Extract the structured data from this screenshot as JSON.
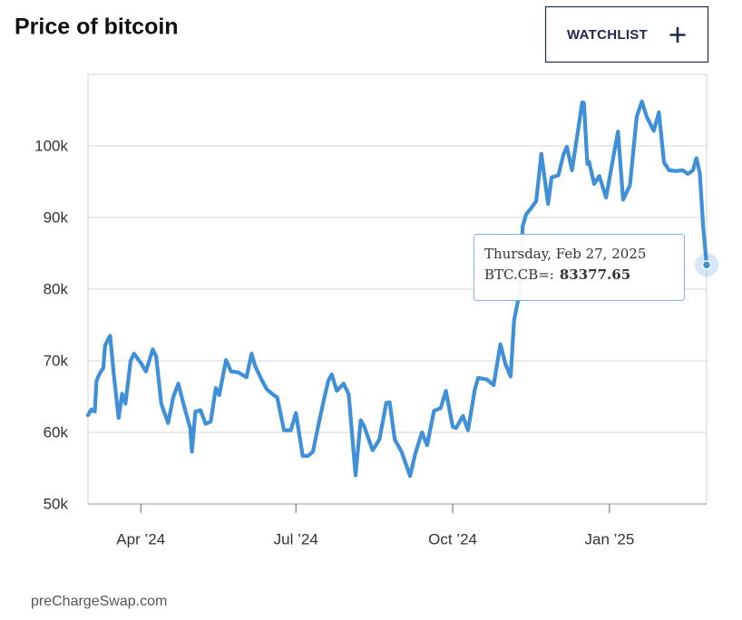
{
  "chart_data": {
    "type": "line",
    "title": "Price of bitcoin",
    "button": "WATCHLIST",
    "source": "preChargeSwap.com",
    "tooltip": {
      "date": "Thursday, Feb 27, 2025",
      "label": "BTC.CB=:"
    },
    "xlim": [
      "2024-03-01",
      "2025-02-27"
    ],
    "xticks": [
      {
        "value": "2024-04-01",
        "label": "Apr ’24"
      },
      {
        "value": "2024-07-01",
        "label": "Jul ’24"
      },
      {
        "value": "2024-10-01",
        "label": "Oct ’24"
      },
      {
        "value": "2025-01-01",
        "label": "Jan ’25"
      }
    ],
    "ylim": [
      50000,
      110000
    ],
    "yticks": [
      {
        "value": 50000,
        "label": "50k"
      },
      {
        "value": 60000,
        "label": "60k"
      },
      {
        "value": 70000,
        "label": "70k"
      },
      {
        "value": 80000,
        "label": "80k"
      },
      {
        "value": 90000,
        "label": "90k"
      },
      {
        "value": 100000,
        "label": "100k"
      }
    ],
    "grid": true,
    "x": [
      "2024-03-01",
      "2024-03-03",
      "2024-03-05",
      "2024-03-06",
      "2024-03-08",
      "2024-03-10",
      "2024-03-11",
      "2024-03-13",
      "2024-03-14",
      "2024-03-16",
      "2024-03-19",
      "2024-03-21",
      "2024-03-23",
      "2024-03-26",
      "2024-03-28",
      "2024-04-01",
      "2024-04-04",
      "2024-04-08",
      "2024-04-10",
      "2024-04-13",
      "2024-04-17",
      "2024-04-20",
      "2024-04-23",
      "2024-04-26",
      "2024-04-30",
      "2024-05-01",
      "2024-05-03",
      "2024-05-06",
      "2024-05-09",
      "2024-05-12",
      "2024-05-15",
      "2024-05-17",
      "2024-05-21",
      "2024-05-24",
      "2024-05-28",
      "2024-06-02",
      "2024-06-05",
      "2024-06-07",
      "2024-06-11",
      "2024-06-14",
      "2024-06-18",
      "2024-06-20",
      "2024-06-24",
      "2024-06-28",
      "2024-07-01",
      "2024-07-05",
      "2024-07-08",
      "2024-07-11",
      "2024-07-14",
      "2024-07-17",
      "2024-07-20",
      "2024-07-22",
      "2024-07-25",
      "2024-07-29",
      "2024-08-01",
      "2024-08-05",
      "2024-08-08",
      "2024-08-10",
      "2024-08-15",
      "2024-08-19",
      "2024-08-23",
      "2024-08-25",
      "2024-08-28",
      "2024-09-01",
      "2024-09-06",
      "2024-09-09",
      "2024-09-13",
      "2024-09-16",
      "2024-09-20",
      "2024-09-24",
      "2024-09-27",
      "2024-10-01",
      "2024-10-03",
      "2024-10-07",
      "2024-10-10",
      "2024-10-14",
      "2024-10-16",
      "2024-10-21",
      "2024-10-25",
      "2024-10-29",
      "2024-11-01",
      "2024-11-04",
      "2024-11-06",
      "2024-11-10",
      "2024-11-11",
      "2024-11-13",
      "2024-11-15",
      "2024-11-19",
      "2024-11-22",
      "2024-11-26",
      "2024-11-28",
      "2024-12-02",
      "2024-12-05",
      "2024-12-07",
      "2024-12-10",
      "2024-12-13",
      "2024-12-16",
      "2024-12-17",
      "2024-12-19",
      "2024-12-20",
      "2024-12-23",
      "2024-12-26",
      "2024-12-30",
      "2025-01-03",
      "2025-01-06",
      "2025-01-09",
      "2025-01-13",
      "2025-01-17",
      "2025-01-20",
      "2025-01-23",
      "2025-01-27",
      "2025-01-30",
      "2025-02-02",
      "2025-02-05",
      "2025-02-09",
      "2025-02-13",
      "2025-02-16",
      "2025-02-19",
      "2025-02-21",
      "2025-02-23",
      "2025-02-25",
      "2025-02-27"
    ],
    "series": [
      {
        "color": "#3f8fd9",
        "values": [
          62400,
          63200,
          62900,
          67200,
          68300,
          69000,
          72100,
          73100,
          73500,
          68400,
          62000,
          65400,
          64000,
          70000,
          71000,
          69700,
          68500,
          71600,
          70600,
          64000,
          61300,
          64900,
          66800,
          64000,
          60600,
          57300,
          62900,
          63100,
          61200,
          61500,
          66200,
          65200,
          70100,
          68500,
          68400,
          67700,
          71000,
          69300,
          67300,
          66000,
          65200,
          64900,
          60300,
          60300,
          62700,
          56700,
          56700,
          57300,
          60800,
          64100,
          67200,
          68100,
          65800,
          66800,
          65300,
          54000,
          61700,
          60900,
          57500,
          59000,
          64100,
          64200,
          59000,
          57300,
          53900,
          57000,
          60000,
          58200,
          63000,
          63400,
          65800,
          60800,
          60600,
          62300,
          60300,
          66000,
          67600,
          67400,
          66600,
          72300,
          69500,
          67800,
          75600,
          80400,
          88700,
          90400,
          91000,
          92300,
          98900,
          91900,
          95600,
          95900,
          98800,
          99900,
          96600,
          101300,
          106100,
          106000,
          97500,
          97800,
          94700,
          95800,
          92800,
          98100,
          102000,
          92500,
          94500,
          104100,
          106200,
          104000,
          102100,
          104700,
          97700,
          96600,
          96500,
          96600,
          96100,
          96600,
          98300,
          96200,
          88700,
          83377.65
        ]
      }
    ]
  }
}
